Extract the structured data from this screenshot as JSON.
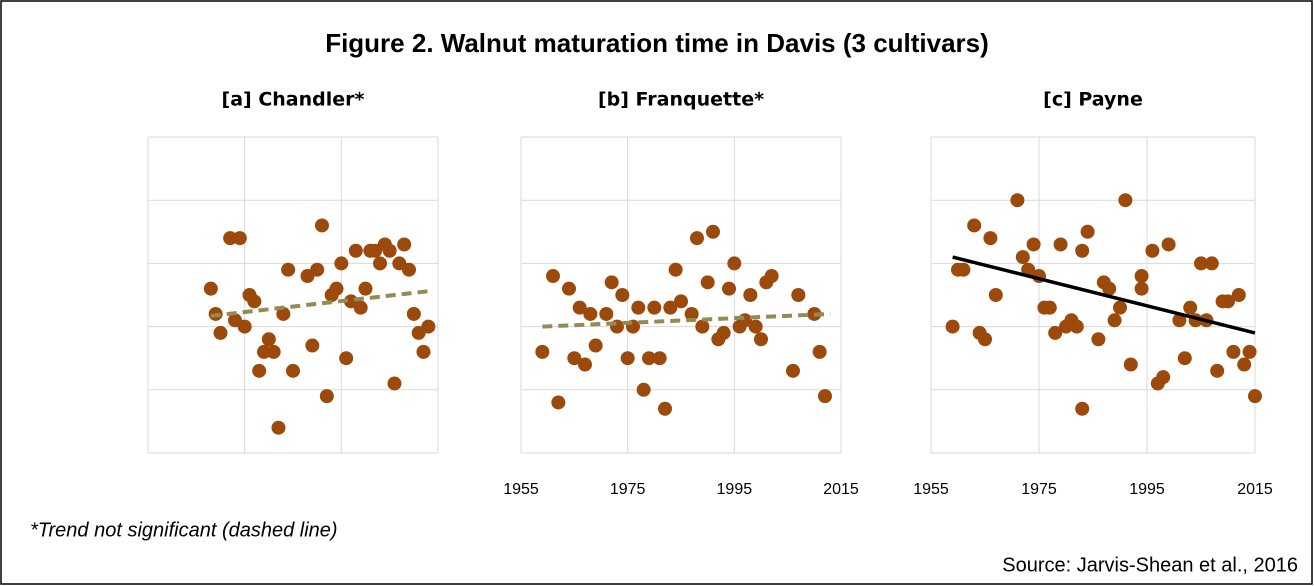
{
  "title": "Figure 2. Walnut maturation time in Davis (3 cultivars)",
  "footnote": "*Trend not significant (dashed line)",
  "source": "Source: Jarvis-Shean et al., 2016",
  "chart_data": [
    {
      "type": "scatter",
      "title": "[a] Chandler*",
      "color": "#9c4a0c",
      "grid": true,
      "show_xtick_labels": false,
      "xlim": [
        1955,
        2015
      ],
      "xticks": [
        1955,
        1975,
        1995,
        2015
      ],
      "ylim": [
        0,
        5
      ],
      "yticks": [
        0,
        1,
        2,
        3,
        4,
        5
      ],
      "x": [
        1968,
        1969,
        1970,
        1972,
        1974,
        1973,
        1975,
        1976,
        1977,
        1978,
        1979,
        1980,
        1981,
        1982,
        1983,
        1984,
        1985,
        1988,
        1989,
        1990,
        1991,
        1992,
        1993,
        1994,
        1995,
        1996,
        1997,
        1998,
        1999,
        2000,
        2001,
        2002,
        2003,
        2004,
        2005,
        2006,
        2007,
        2008,
        2009,
        2010,
        2011,
        2012,
        2013
      ],
      "values": [
        2.6,
        2.2,
        1.9,
        3.4,
        3.4,
        2.1,
        2.0,
        2.5,
        2.4,
        1.3,
        1.6,
        1.8,
        1.6,
        0.4,
        2.2,
        2.9,
        1.3,
        2.8,
        1.7,
        2.9,
        3.6,
        0.9,
        2.5,
        2.6,
        3.0,
        1.5,
        2.4,
        3.2,
        2.3,
        2.6,
        3.2,
        3.2,
        3.0,
        3.3,
        3.2,
        1.1,
        3.0,
        3.3,
        2.9,
        2.2,
        1.9,
        1.6,
        2.0
      ],
      "trendline": {
        "x": [
          1968,
          2013
        ],
        "y": [
          2.17,
          2.56
        ],
        "style": "dashed",
        "color": "#948a54"
      }
    },
    {
      "type": "scatter",
      "title": "[b] Franquette*",
      "color": "#9c4a0c",
      "grid": true,
      "show_xtick_labels": true,
      "xlim": [
        1955,
        2015
      ],
      "xticks": [
        1955,
        1975,
        1995,
        2015
      ],
      "ylim": [
        0,
        5
      ],
      "yticks": [
        0,
        1,
        2,
        3,
        4,
        5
      ],
      "x": [
        1959,
        1961,
        1962,
        1964,
        1965,
        1966,
        1967,
        1968,
        1969,
        1971,
        1972,
        1973,
        1974,
        1975,
        1976,
        1977,
        1978,
        1979,
        1980,
        1981,
        1982,
        1983,
        1984,
        1985,
        1987,
        1988,
        1989,
        1990,
        1991,
        1992,
        1993,
        1994,
        1995,
        1996,
        1997,
        1998,
        1999,
        2000,
        2001,
        2002,
        2006,
        2007,
        2010,
        2011,
        2012
      ],
      "values": [
        1.6,
        2.8,
        0.8,
        2.6,
        1.5,
        2.3,
        1.4,
        2.2,
        1.7,
        2.2,
        2.7,
        2.0,
        2.5,
        1.5,
        2.0,
        2.3,
        1.0,
        1.5,
        2.3,
        1.5,
        0.7,
        2.3,
        2.9,
        2.4,
        2.2,
        3.4,
        2.0,
        2.7,
        3.5,
        1.8,
        1.9,
        2.6,
        3.0,
        2.0,
        2.1,
        2.5,
        2.0,
        1.8,
        2.7,
        2.8,
        1.3,
        2.5,
        2.2,
        1.6,
        0.9
      ],
      "trendline": {
        "x": [
          1959,
          2013
        ],
        "y": [
          2.0,
          2.2
        ],
        "style": "dashed",
        "color": "#948a54"
      }
    },
    {
      "type": "scatter",
      "title": "[c] Payne",
      "color": "#9c4a0c",
      "grid": true,
      "show_xtick_labels": true,
      "xlim": [
        1955,
        2015
      ],
      "xticks": [
        1955,
        1975,
        1995,
        2015
      ],
      "ylim": [
        0,
        5
      ],
      "yticks": [
        0,
        1,
        2,
        3,
        4,
        5
      ],
      "x": [
        1959,
        1960,
        1961,
        1963,
        1964,
        1965,
        1966,
        1967,
        1971,
        1972,
        1973,
        1974,
        1975,
        1976,
        1977,
        1978,
        1979,
        1980,
        1981,
        1982,
        1983,
        1983,
        1984,
        1986,
        1987,
        1988,
        1989,
        1990,
        1991,
        1992,
        1994,
        1994,
        1996,
        1997,
        1998,
        1999,
        2001,
        2002,
        2003,
        2004,
        2005,
        2006,
        2007,
        2008,
        2009,
        2010,
        2011,
        2012,
        2013,
        2014,
        2015
      ],
      "values": [
        2.0,
        2.9,
        2.9,
        3.6,
        1.9,
        1.8,
        3.4,
        2.5,
        4.0,
        3.1,
        2.9,
        3.3,
        2.8,
        2.3,
        2.3,
        1.9,
        3.3,
        2.0,
        2.1,
        2.0,
        0.7,
        3.2,
        3.5,
        1.8,
        2.7,
        2.6,
        2.1,
        2.3,
        4.0,
        1.4,
        2.8,
        2.6,
        3.2,
        1.1,
        1.2,
        3.3,
        2.1,
        1.5,
        2.3,
        2.1,
        3.0,
        2.1,
        3.0,
        1.3,
        2.4,
        2.4,
        1.6,
        2.5,
        1.4,
        1.6,
        0.9
      ],
      "trendline": {
        "x": [
          1959,
          2015
        ],
        "y": [
          3.1,
          1.9
        ],
        "style": "solid",
        "color": "#000000"
      }
    }
  ]
}
